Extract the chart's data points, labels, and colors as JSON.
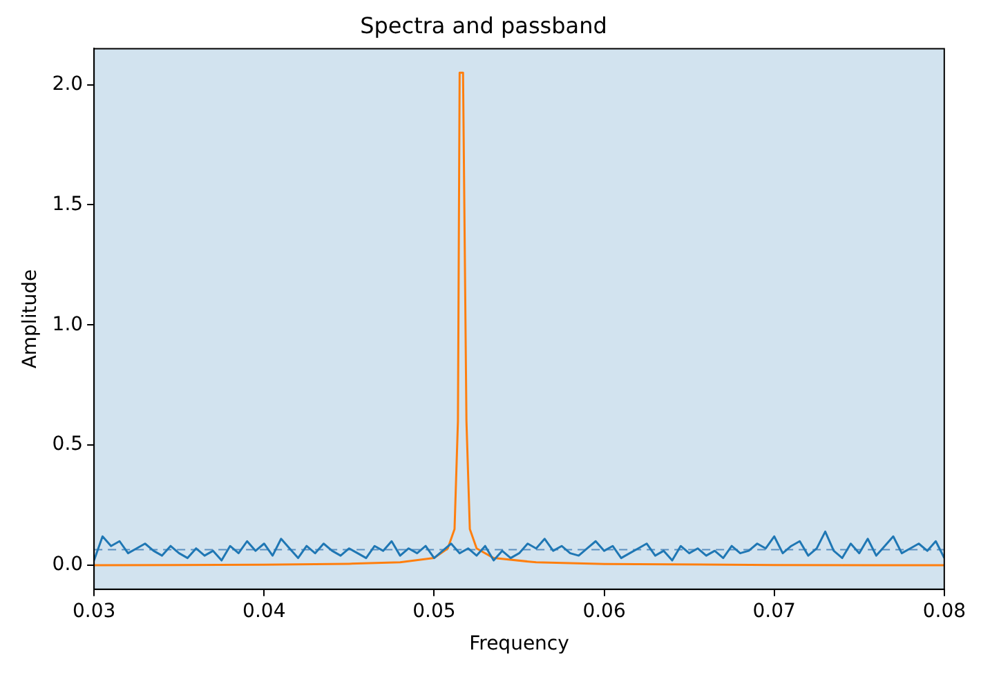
{
  "chart_data": {
    "type": "line",
    "title": "Spectra and passband",
    "xlabel": "Frequency",
    "ylabel": "Amplitude",
    "xlim": [
      0.03,
      0.08
    ],
    "xticks": [
      0.03,
      0.04,
      0.05,
      0.06,
      0.07,
      0.08
    ],
    "ylim": [
      -0.1,
      2.15
    ],
    "yticks": [
      {
        "value": 0,
        "label": "0.0"
      },
      0.5,
      {
        "value": 1,
        "label": "1.0"
      },
      1.5,
      {
        "value": 2,
        "label": "2.0"
      }
    ],
    "grid": false,
    "legend": false,
    "bands": [
      {
        "axis": "x",
        "from": 0.03,
        "to": 0.08,
        "color": "#d2e3ef"
      }
    ],
    "ref_lines": [
      {
        "axis": "y",
        "value": 0.065,
        "color": "#5a8fc0",
        "line_style": "dashed"
      }
    ],
    "series": [
      {
        "color": "#1f77b4",
        "x": [
          0.03,
          0.0305,
          0.031,
          0.0315,
          0.032,
          0.0325,
          0.033,
          0.0335,
          0.034,
          0.0345,
          0.035,
          0.0355,
          0.036,
          0.0365,
          0.037,
          0.0375,
          0.038,
          0.0385,
          0.039,
          0.0395,
          0.04,
          0.0405,
          0.041,
          0.0415,
          0.042,
          0.0425,
          0.043,
          0.0435,
          0.044,
          0.0445,
          0.045,
          0.0455,
          0.046,
          0.0465,
          0.047,
          0.0475,
          0.048,
          0.0485,
          0.049,
          0.0495,
          0.05,
          0.0505,
          0.051,
          0.0515,
          0.052,
          0.0525,
          0.053,
          0.0535,
          0.054,
          0.0545,
          0.055,
          0.0555,
          0.056,
          0.0565,
          0.057,
          0.0575,
          0.058,
          0.0585,
          0.059,
          0.0595,
          0.06,
          0.0605,
          0.061,
          0.0615,
          0.062,
          0.0625,
          0.063,
          0.0635,
          0.064,
          0.0645,
          0.065,
          0.0655,
          0.066,
          0.0665,
          0.067,
          0.0675,
          0.068,
          0.0685,
          0.069,
          0.0695,
          0.07,
          0.0705,
          0.071,
          0.0715,
          0.072,
          0.0725,
          0.073,
          0.0735,
          0.074,
          0.0745,
          0.075,
          0.0755,
          0.076,
          0.0765,
          0.077,
          0.0775,
          0.078,
          0.0785,
          0.079,
          0.0795,
          0.08
        ],
        "values": [
          0.02,
          0.12,
          0.08,
          0.1,
          0.05,
          0.07,
          0.09,
          0.06,
          0.04,
          0.08,
          0.05,
          0.03,
          0.07,
          0.04,
          0.06,
          0.02,
          0.08,
          0.05,
          0.1,
          0.06,
          0.09,
          0.04,
          0.11,
          0.07,
          0.03,
          0.08,
          0.05,
          0.09,
          0.06,
          0.04,
          0.07,
          0.05,
          0.03,
          0.08,
          0.06,
          0.1,
          0.04,
          0.07,
          0.05,
          0.08,
          0.03,
          0.06,
          0.09,
          0.05,
          0.07,
          0.04,
          0.08,
          0.02,
          0.06,
          0.03,
          0.05,
          0.09,
          0.07,
          0.11,
          0.06,
          0.08,
          0.05,
          0.04,
          0.07,
          0.1,
          0.06,
          0.08,
          0.03,
          0.05,
          0.07,
          0.09,
          0.04,
          0.06,
          0.02,
          0.08,
          0.05,
          0.07,
          0.04,
          0.06,
          0.03,
          0.08,
          0.05,
          0.06,
          0.09,
          0.07,
          0.12,
          0.05,
          0.08,
          0.1,
          0.04,
          0.07,
          0.14,
          0.06,
          0.03,
          0.09,
          0.05,
          0.11,
          0.04,
          0.08,
          0.12,
          0.05,
          0.07,
          0.09,
          0.06,
          0.1,
          0.03
        ]
      },
      {
        "color": "#ff7f0e",
        "x": [
          0.03,
          0.04,
          0.045,
          0.048,
          0.05,
          0.0508,
          0.0512,
          0.0514,
          0.0515,
          0.0517,
          0.0519,
          0.0521,
          0.0525,
          0.0535,
          0.056,
          0.06,
          0.07,
          0.08
        ],
        "values": [
          0,
          0.002,
          0.006,
          0.012,
          0.03,
          0.07,
          0.15,
          0.6,
          2.05,
          2.05,
          0.6,
          0.15,
          0.07,
          0.03,
          0.012,
          0.005,
          0.001,
          0
        ]
      }
    ]
  }
}
